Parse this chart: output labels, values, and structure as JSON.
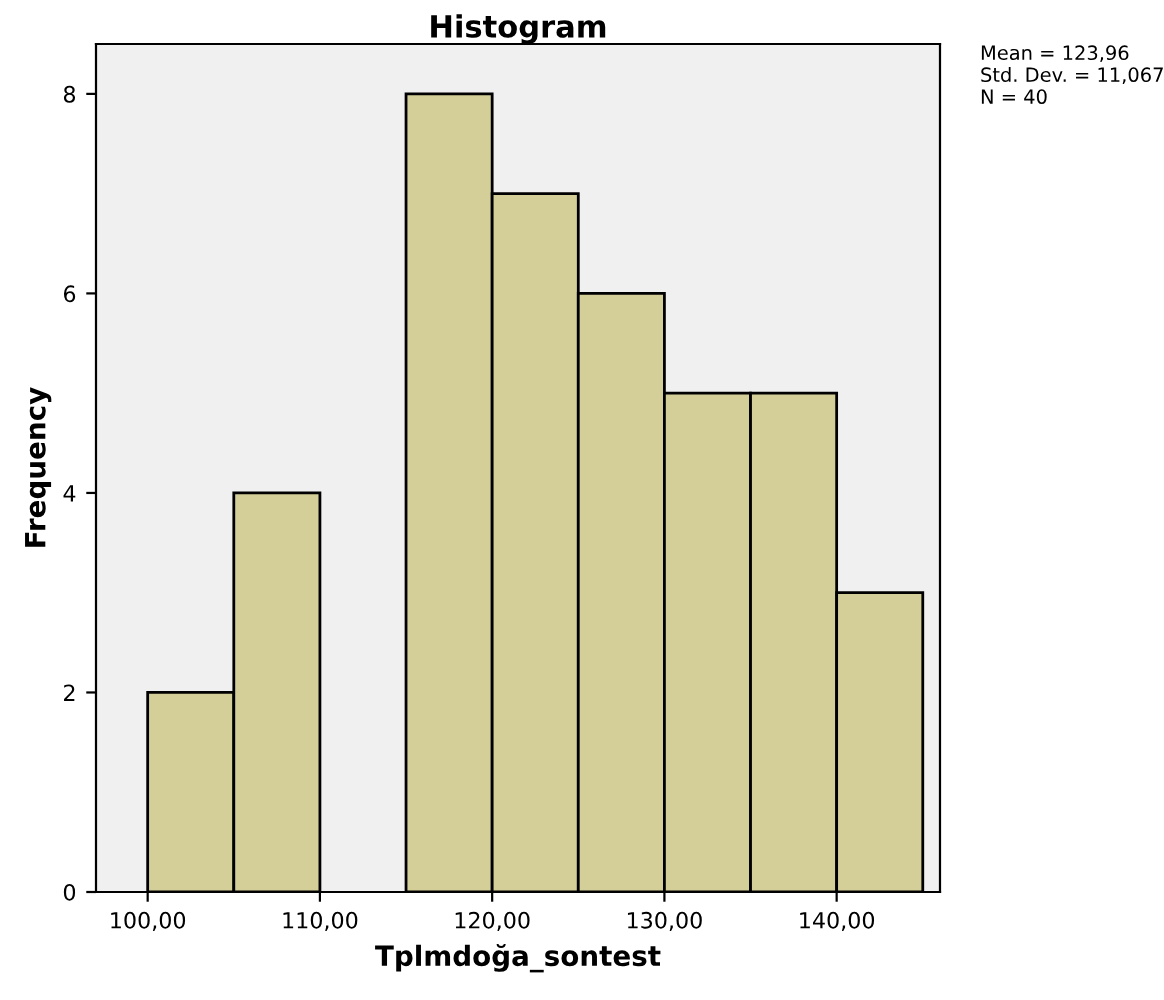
{
  "chart_data": {
    "type": "histogram",
    "title": "Histogram",
    "xlabel": "Tplmdoğa_sontest",
    "ylabel": "Frequency",
    "bins": [
      100,
      105,
      110,
      115,
      120,
      125,
      130,
      135,
      140,
      145
    ],
    "values": [
      2,
      4,
      0,
      8,
      7,
      6,
      5,
      5,
      3
    ],
    "color": "#d4cf98",
    "xlim": [
      97,
      146
    ],
    "ylim": [
      0,
      8.5
    ],
    "xticks": [
      {
        "value": 100,
        "label": "100,00"
      },
      {
        "value": 110,
        "label": "110,00"
      },
      {
        "value": 120,
        "label": "120,00"
      },
      {
        "value": 130,
        "label": "130,00"
      },
      {
        "value": 140,
        "label": "140,00"
      }
    ],
    "yticks": [
      0,
      2,
      4,
      6,
      8
    ],
    "annotations": [
      "Mean = 123,96",
      "Std. Dev. = 11,067",
      "N = 40"
    ],
    "grid": false,
    "legend": false
  }
}
